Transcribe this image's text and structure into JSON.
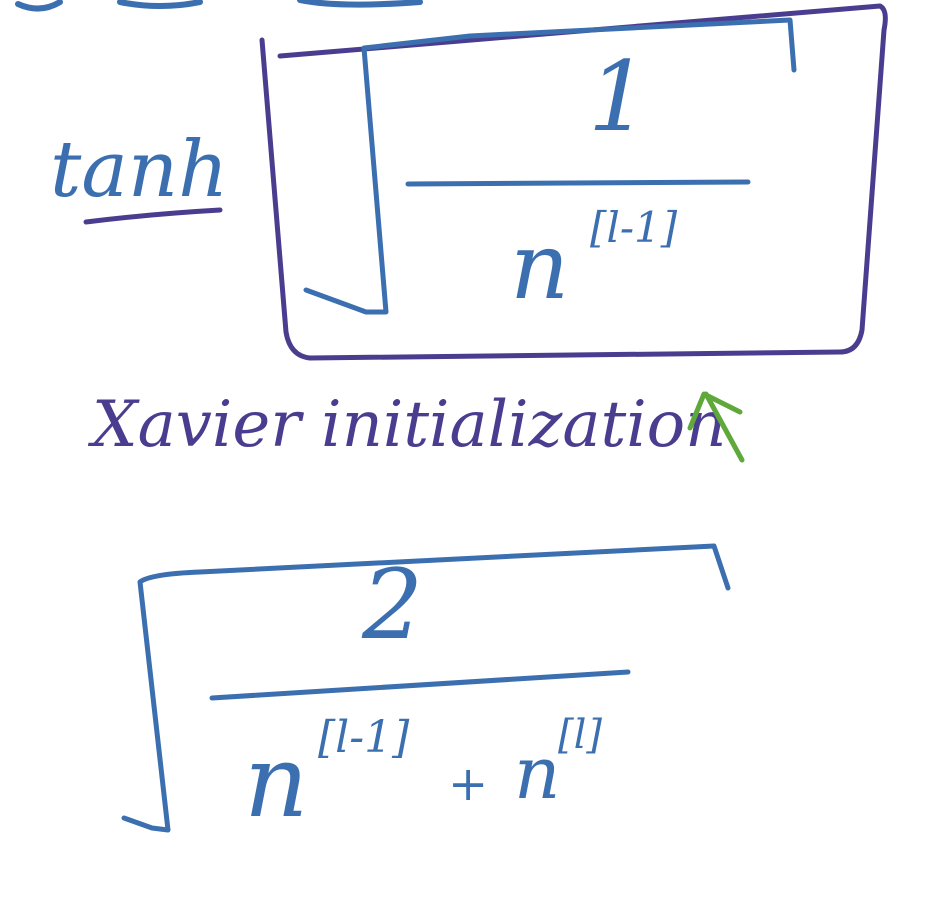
{
  "notes": {
    "activation_label": "tanh",
    "formula_1": {
      "numerator": "1",
      "denominator_base": "n",
      "denominator_superscript": "[l-1]"
    },
    "caption": "Xavier initialization",
    "formula_2": {
      "numerator": "2",
      "term_1_base": "n",
      "term_1_superscript": "[l-1]",
      "plus": "+",
      "term_2_base": "n",
      "term_2_superscript": "[l]"
    }
  },
  "colors": {
    "blue_ink": "#3b6fb0",
    "purple_ink": "#4a3d8f",
    "green_ink": "#5fa83a",
    "background": "#ffffff"
  }
}
